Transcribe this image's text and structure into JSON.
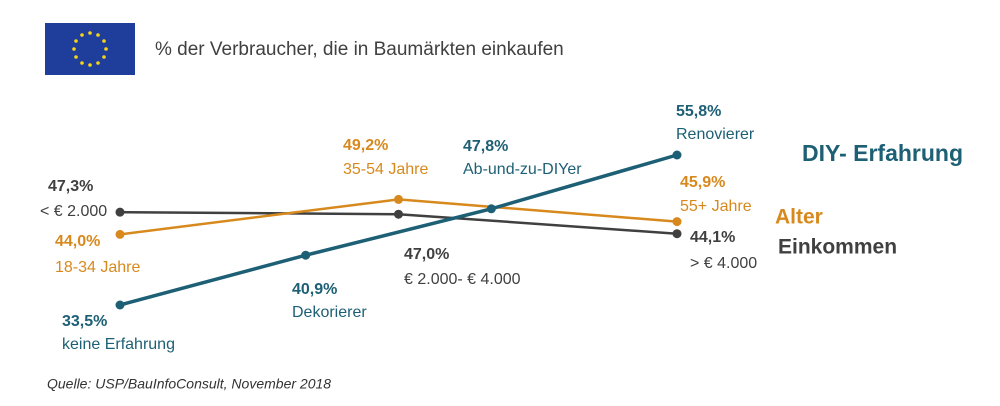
{
  "chart_data": {
    "type": "line",
    "title": "% der Verbraucher, die in Baumärkten einkaufen",
    "source": "Quelle: USP/BauInfoConsult, November 2018",
    "series": [
      {
        "name": "Einkommen",
        "color": "#404040",
        "values": [
          47.3,
          47.0,
          44.1
        ],
        "value_labels": [
          "47,3%",
          "47,0%",
          "44,1%"
        ],
        "point_labels": [
          "< € 2.000",
          "€ 2.000- € 4.000",
          "> € 4.000"
        ]
      },
      {
        "name": "Alter",
        "color": "#d8891d",
        "values": [
          44.0,
          49.2,
          45.9
        ],
        "value_labels": [
          "44,0%",
          "49,2%",
          "45,9%"
        ],
        "point_labels": [
          "18-34 Jahre",
          "35-54 Jahre",
          "55+ Jahre"
        ]
      },
      {
        "name": "DIY- Erfahrung",
        "color": "#1d5f74",
        "values": [
          33.5,
          40.9,
          47.8,
          55.8
        ],
        "value_labels": [
          "33,5%",
          "40,9%",
          "47,8%",
          "55,8%"
        ],
        "point_labels": [
          "keine Erfahrung",
          "Dekorierer",
          "Ab-und-zu-DIYer",
          "Renovierer"
        ]
      }
    ]
  }
}
